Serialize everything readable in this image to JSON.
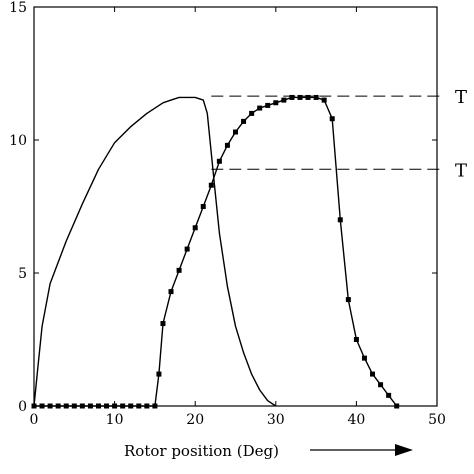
{
  "chart_data": {
    "type": "line",
    "title": "",
    "xlabel": "Rotor position (Deg)",
    "ylabel": "",
    "xlim": [
      0,
      50
    ],
    "ylim": [
      0,
      15
    ],
    "xticks": [
      "0",
      "10",
      "20",
      "30",
      "40",
      "50"
    ],
    "yticks": [
      "0",
      "5",
      "10",
      "15"
    ],
    "grid": false,
    "series": [
      {
        "marker": "none",
        "points": [
          [
            0,
            0
          ],
          [
            0.5,
            1.5
          ],
          [
            1,
            3.0
          ],
          [
            2,
            4.6
          ],
          [
            4,
            6.2
          ],
          [
            6,
            7.6
          ],
          [
            8,
            8.9
          ],
          [
            10,
            9.9
          ],
          [
            12,
            10.5
          ],
          [
            14,
            11.0
          ],
          [
            16,
            11.4
          ],
          [
            17,
            11.5
          ],
          [
            18,
            11.6
          ],
          [
            20,
            11.6
          ],
          [
            21,
            11.5
          ],
          [
            21.5,
            11.0
          ],
          [
            22,
            9.5
          ],
          [
            22.5,
            8.0
          ],
          [
            23,
            6.5
          ],
          [
            24,
            4.5
          ],
          [
            25,
            3.0
          ],
          [
            26,
            2.0
          ],
          [
            27,
            1.2
          ],
          [
            28,
            0.6
          ],
          [
            29,
            0.2
          ],
          [
            30,
            0
          ]
        ]
      },
      {
        "marker": "square",
        "points": [
          [
            0,
            0
          ],
          [
            1,
            0
          ],
          [
            2,
            0
          ],
          [
            3,
            0
          ],
          [
            4,
            0
          ],
          [
            5,
            0
          ],
          [
            6,
            0
          ],
          [
            7,
            0
          ],
          [
            8,
            0
          ],
          [
            9,
            0
          ],
          [
            10,
            0
          ],
          [
            11,
            0
          ],
          [
            12,
            0
          ],
          [
            13,
            0
          ],
          [
            14,
            0
          ],
          [
            15,
            0
          ],
          [
            15.5,
            1.2
          ],
          [
            16,
            3.1
          ],
          [
            17,
            4.3
          ],
          [
            18,
            5.1
          ],
          [
            19,
            5.9
          ],
          [
            20,
            6.7
          ],
          [
            21,
            7.5
          ],
          [
            22,
            8.3
          ],
          [
            23,
            9.2
          ],
          [
            24,
            9.8
          ],
          [
            25,
            10.3
          ],
          [
            26,
            10.7
          ],
          [
            27,
            11.0
          ],
          [
            28,
            11.2
          ],
          [
            29,
            11.3
          ],
          [
            30,
            11.4
          ],
          [
            31,
            11.5
          ],
          [
            32,
            11.6
          ],
          [
            33,
            11.6
          ],
          [
            34,
            11.6
          ],
          [
            35,
            11.6
          ],
          [
            36,
            11.5
          ],
          [
            37,
            10.8
          ],
          [
            38,
            7.0
          ],
          [
            39,
            4.0
          ],
          [
            40,
            2.5
          ],
          [
            41,
            1.8
          ],
          [
            42,
            1.2
          ],
          [
            43,
            0.8
          ],
          [
            44,
            0.4
          ],
          [
            45,
            0
          ]
        ]
      }
    ],
    "reference_lines": [
      {
        "y": 11.65,
        "x_from": 22,
        "style": "dashed",
        "label": "T"
      },
      {
        "y": 8.9,
        "x_from": 22,
        "style": "dashed",
        "label": "T"
      }
    ]
  }
}
